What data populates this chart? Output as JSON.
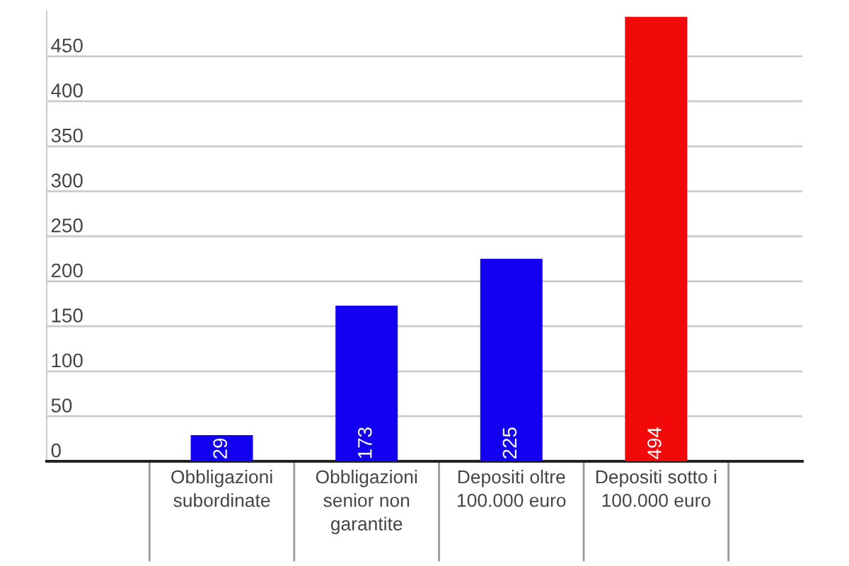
{
  "chart_data": {
    "type": "bar",
    "categories": [
      "Obbligazioni\nsubordinate",
      "Obbligazioni\nsenior non\ngarantite",
      "Depositi oltre\n100.000 euro",
      "Depositi sotto i\n100.000 euro"
    ],
    "values": [
      29,
      173,
      225,
      494
    ],
    "colors": [
      "#1400f0",
      "#1400f0",
      "#1400f0",
      "#f20a0a"
    ],
    "ylim": [
      0,
      500
    ],
    "yticks": [
      0,
      50,
      100,
      150,
      200,
      250,
      300,
      350,
      400,
      450
    ],
    "grid": "y",
    "data_labels": true
  }
}
